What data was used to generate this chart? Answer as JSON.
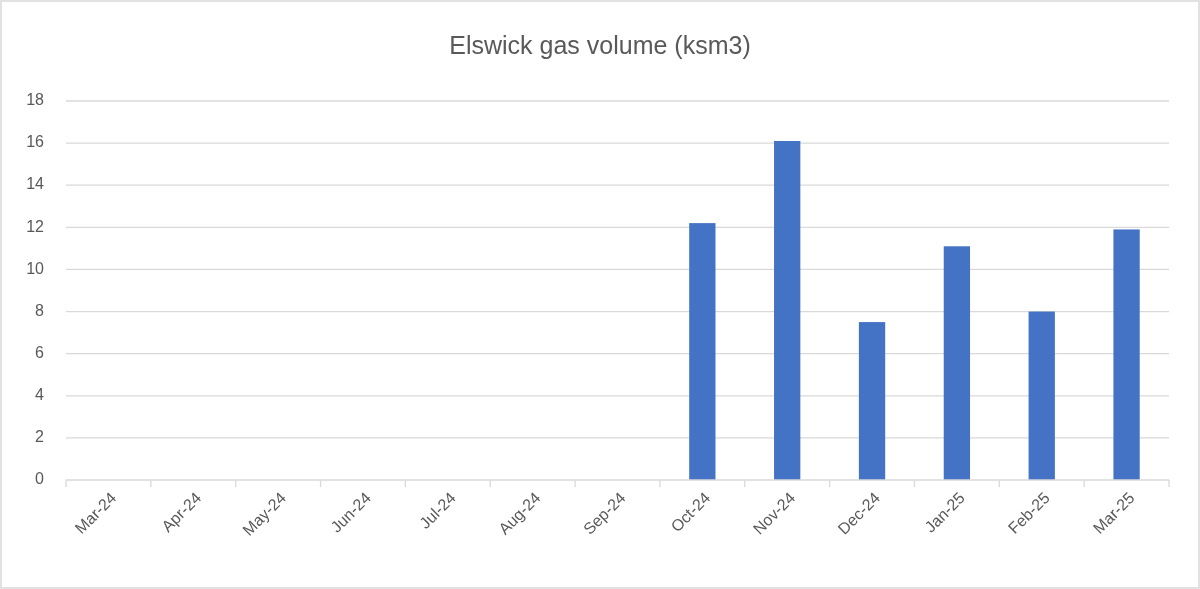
{
  "chart_data": {
    "type": "bar",
    "title": "Elswick gas volume (ksm3)",
    "categories": [
      "Mar-24",
      "Apr-24",
      "May-24",
      "Jun-24",
      "Jul-24",
      "Aug-24",
      "Sep-24",
      "Oct-24",
      "Nov-24",
      "Dec-24",
      "Jan-25",
      "Feb-25",
      "Mar-25"
    ],
    "values": [
      null,
      null,
      null,
      null,
      null,
      null,
      null,
      12.2,
      16.1,
      7.5,
      11.1,
      8.0,
      11.9
    ],
    "color": "#4472c4",
    "ylim": [
      0,
      18
    ],
    "yticks": [
      0,
      2,
      4,
      6,
      8,
      10,
      12,
      14,
      16,
      18
    ],
    "grid": "y"
  }
}
